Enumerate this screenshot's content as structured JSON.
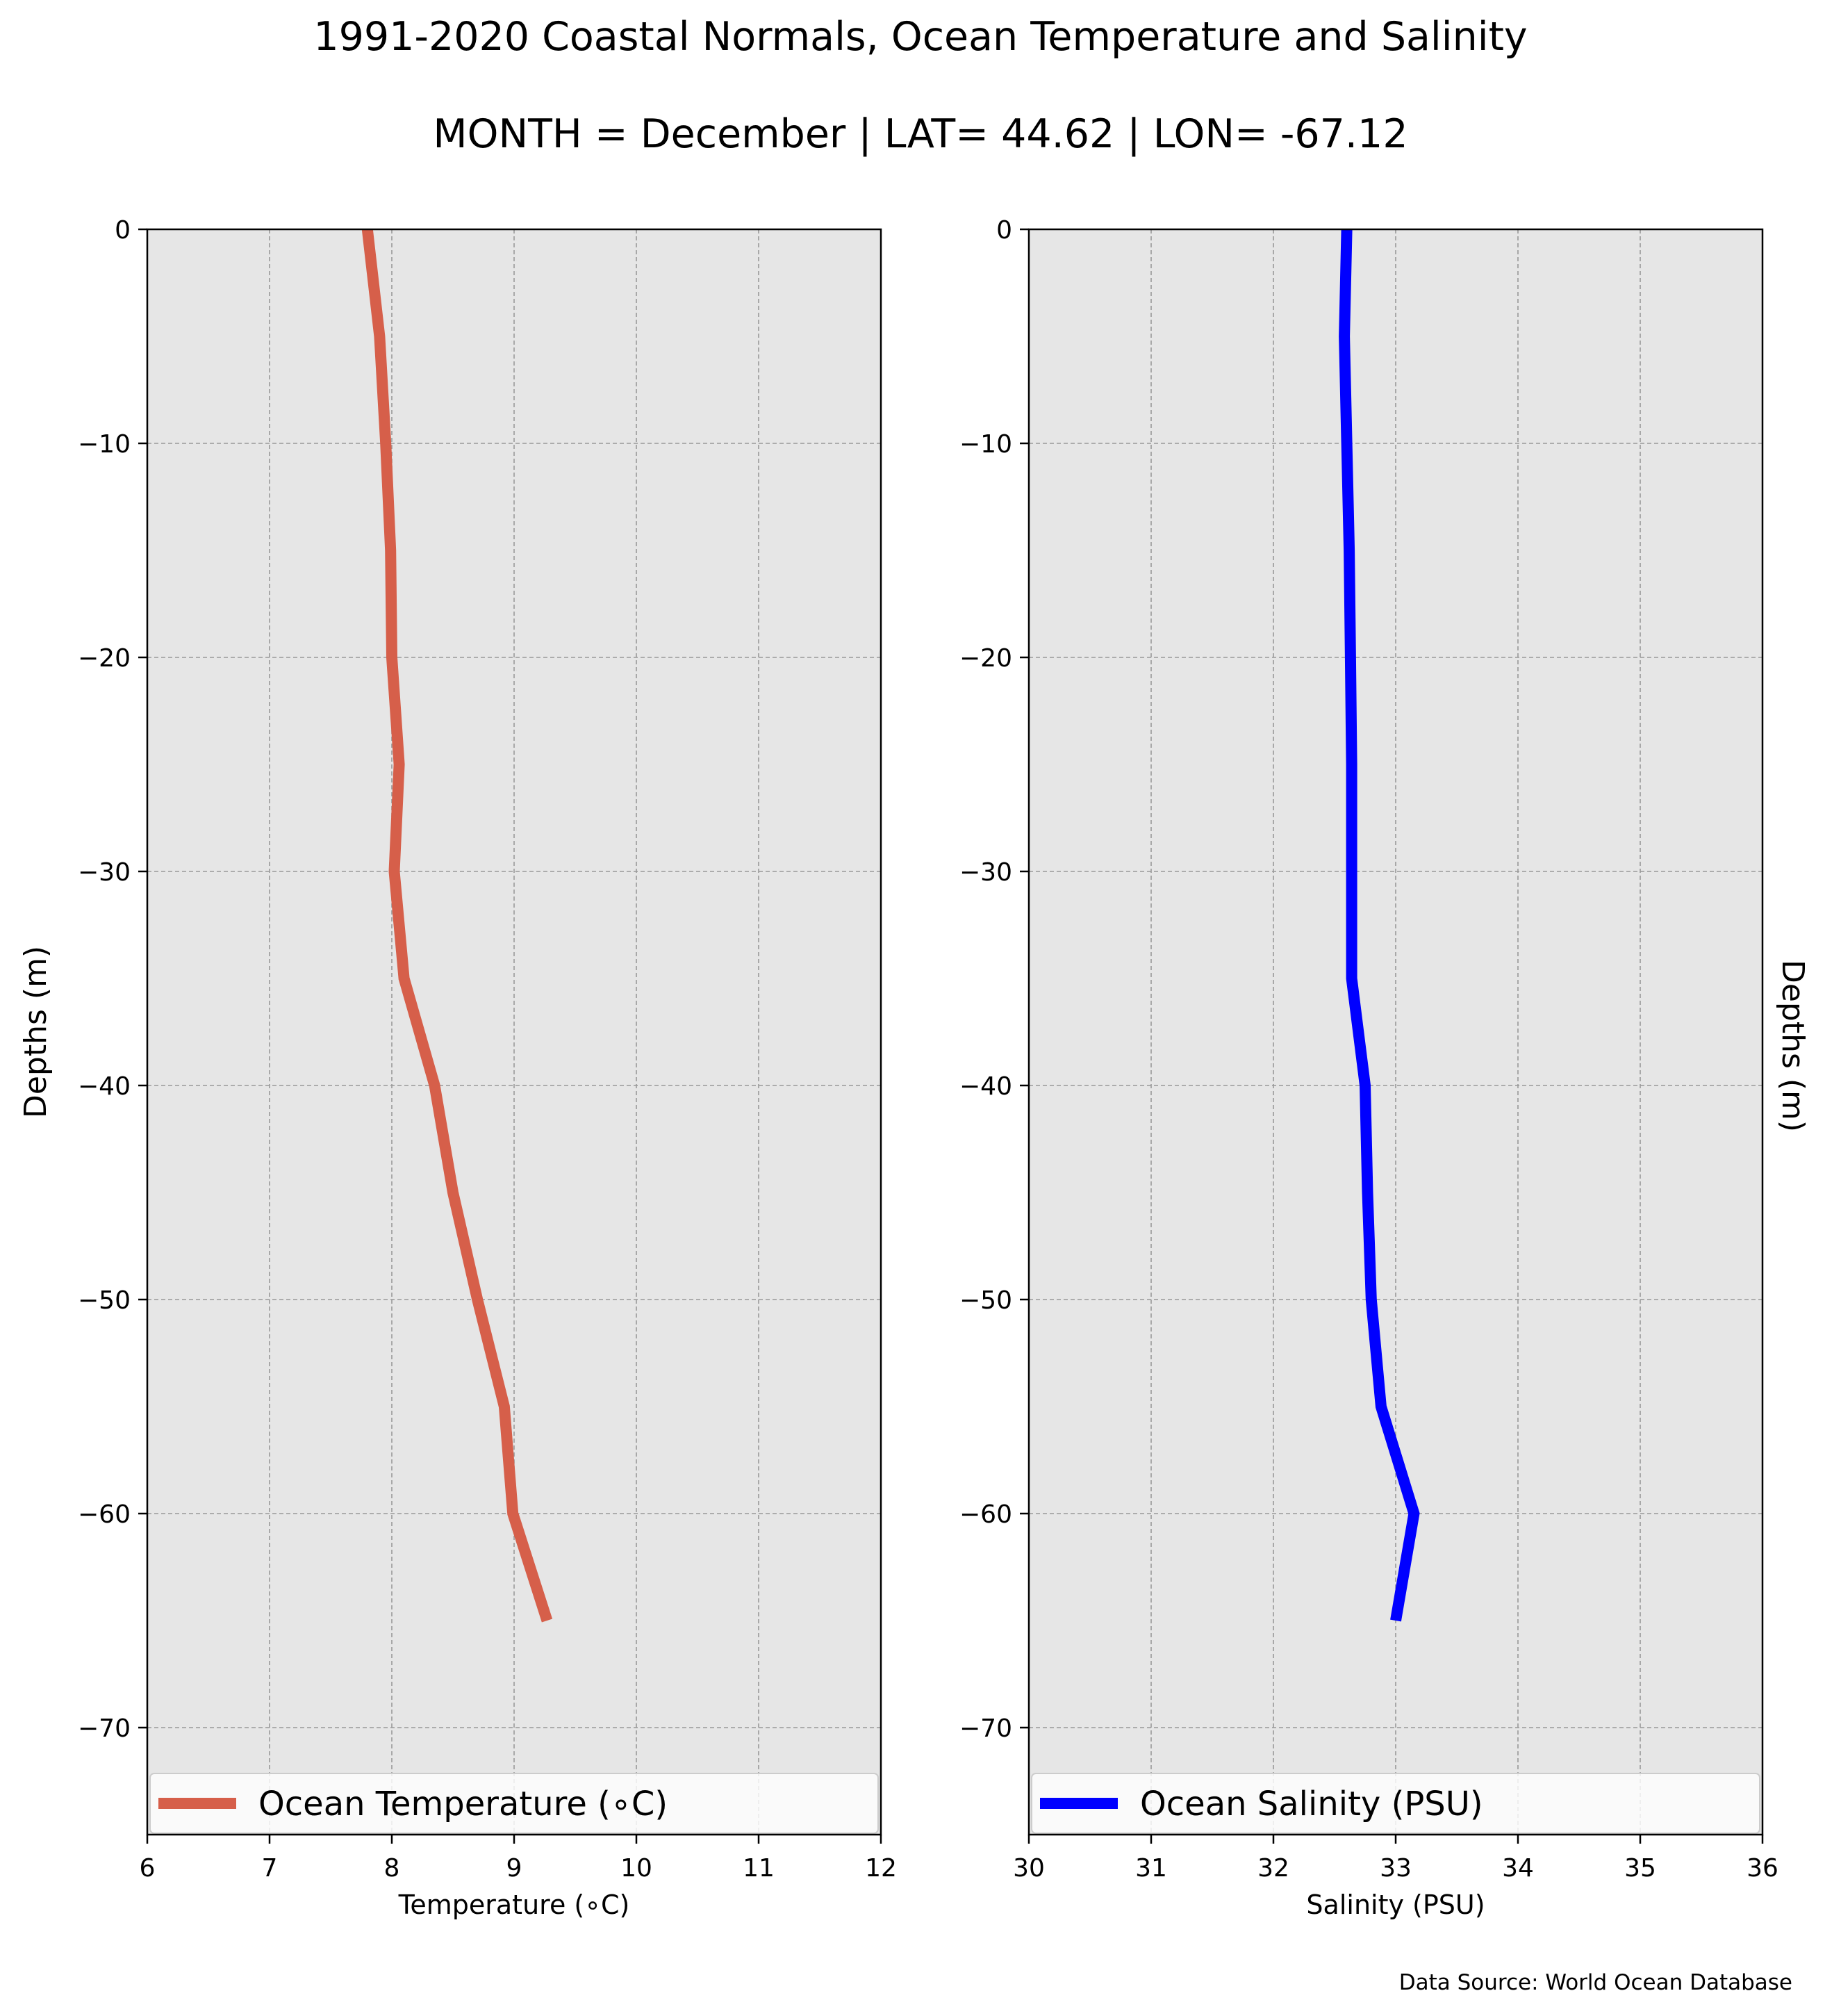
{
  "figure": {
    "title": "1991-2020 Coastal Normals, Ocean Temperature and Salinity",
    "subtitle": "MONTH = December | LAT= 44.62 | LON= -67.12",
    "source_note": "Data Source: World Ocean Database",
    "panel_background": "#e6e6e6",
    "grid_color": "#999999"
  },
  "chart_data": [
    {
      "type": "line",
      "xlabel": "Temperature (∘C)",
      "ylabel": "Depths (m)",
      "ylabel_side": "left",
      "xlim": [
        6,
        12
      ],
      "ylim": [
        -75,
        0
      ],
      "xticks": [
        6,
        7,
        8,
        9,
        10,
        11,
        12
      ],
      "yticks": [
        0,
        -10,
        -20,
        -30,
        -40,
        -50,
        -60,
        -70
      ],
      "ytick_labels": [
        "0",
        "−10",
        "−20",
        "−30",
        "−40",
        "−50",
        "−60",
        "−70"
      ],
      "grid": true,
      "legend_position": "bottom",
      "series": [
        {
          "name": "Ocean Temperature (∘C)",
          "color": "#d65f4a",
          "depth": [
            0,
            -5,
            -10,
            -15,
            -20,
            -25,
            -30,
            -35,
            -40,
            -45,
            -50,
            -55,
            -60,
            -65
          ],
          "values": [
            7.8,
            7.9,
            7.95,
            7.99,
            8.0,
            8.06,
            8.02,
            8.1,
            8.35,
            8.5,
            8.7,
            8.92,
            8.99,
            9.27
          ]
        }
      ]
    },
    {
      "type": "line",
      "xlabel": "Salinity (PSU)",
      "ylabel": "Depths (m)",
      "ylabel_side": "right",
      "xlim": [
        30,
        36
      ],
      "ylim": [
        -75,
        0
      ],
      "xticks": [
        30,
        31,
        32,
        33,
        34,
        35,
        36
      ],
      "yticks": [
        0,
        -10,
        -20,
        -30,
        -40,
        -50,
        -60,
        -70
      ],
      "ytick_labels": [
        "0",
        "−10",
        "−20",
        "−30",
        "−40",
        "−50",
        "−60",
        "−70"
      ],
      "grid": true,
      "legend_position": "bottom",
      "series": [
        {
          "name": "Ocean Salinity (PSU)",
          "color": "#0000ff",
          "depth": [
            0,
            -5,
            -10,
            -15,
            -20,
            -25,
            -30,
            -35,
            -40,
            -45,
            -50,
            -55,
            -60,
            -65
          ],
          "values": [
            32.6,
            32.58,
            32.6,
            32.62,
            32.63,
            32.64,
            32.64,
            32.64,
            32.75,
            32.77,
            32.8,
            32.88,
            33.15,
            33.0
          ]
        }
      ]
    }
  ]
}
